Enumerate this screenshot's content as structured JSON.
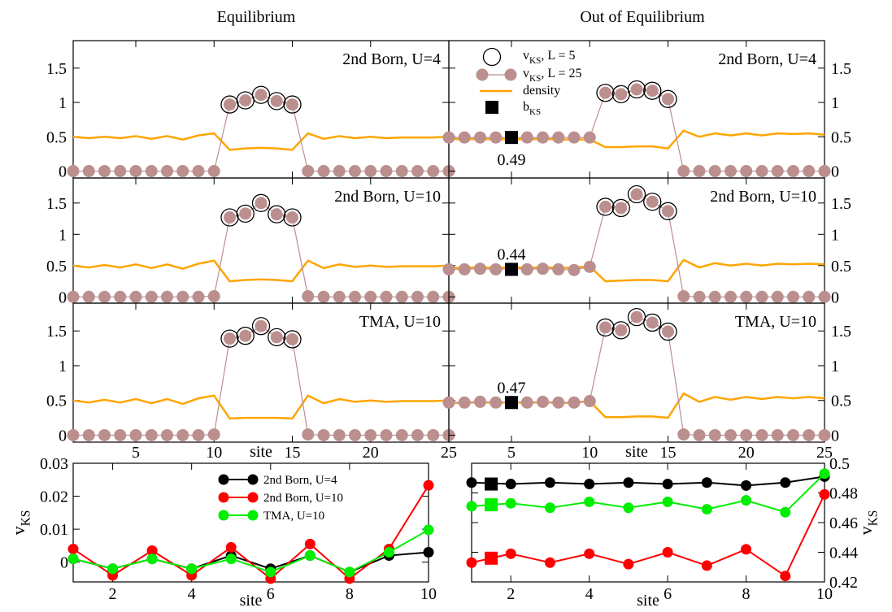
{
  "figure": {
    "column_titles": [
      "Equilibrium",
      "Out of Equilibrium"
    ],
    "colors": {
      "vks_line": "#bc8f8f",
      "vks_marker": "#bc8f8f",
      "density": "#ffa500",
      "bks": "#000000",
      "u4": "#000000",
      "u10": "#ff0000",
      "tma": "#00ee00"
    }
  },
  "chart_data": [
    {
      "type": "line",
      "id": "eq-2b-u4",
      "panel_label": "2nd Born, U=4",
      "xlim": [
        1,
        25
      ],
      "ylim": [
        -0.1,
        1.9
      ],
      "yticks": [
        0,
        0.5,
        1,
        1.5
      ],
      "series": [
        {
          "name": "v_KS, L = 5",
          "x": [
            11,
            12,
            13,
            14,
            15
          ],
          "y": [
            0.97,
            1.03,
            1.11,
            1.02,
            0.97
          ]
        },
        {
          "name": "v_KS, L = 25",
          "x": [
            1,
            2,
            3,
            4,
            5,
            6,
            7,
            8,
            9,
            10,
            11,
            12,
            13,
            14,
            15,
            16,
            17,
            18,
            19,
            20,
            21,
            22,
            23,
            24,
            25
          ],
          "y": [
            0,
            0,
            0,
            0,
            0,
            0,
            0,
            0,
            0,
            0,
            0.97,
            1.03,
            1.11,
            1.02,
            0.97,
            0,
            0,
            0,
            0,
            0,
            0,
            0,
            0,
            0,
            0
          ]
        },
        {
          "name": "density",
          "x": [
            1,
            2,
            3,
            4,
            5,
            6,
            7,
            8,
            9,
            10,
            11,
            12,
            13,
            14,
            15,
            16,
            17,
            18,
            19,
            20,
            21,
            22,
            23,
            24,
            25
          ],
          "y": [
            0.5,
            0.48,
            0.5,
            0.48,
            0.51,
            0.47,
            0.51,
            0.46,
            0.52,
            0.55,
            0.31,
            0.33,
            0.34,
            0.33,
            0.31,
            0.55,
            0.47,
            0.51,
            0.48,
            0.5,
            0.48,
            0.49,
            0.49,
            0.49,
            0.5
          ]
        }
      ]
    },
    {
      "type": "line",
      "id": "neq-2b-u4",
      "panel_label": "2nd Born, U=4",
      "xlim": [
        1,
        25
      ],
      "ylim": [
        -0.1,
        1.9
      ],
      "yticks": [
        0,
        0.5,
        1,
        1.5
      ],
      "bks": {
        "x": 5,
        "y": 0.49,
        "label": "0.49"
      },
      "series": [
        {
          "name": "v_KS, L = 5",
          "x": [
            11,
            12,
            13,
            14,
            15
          ],
          "y": [
            1.14,
            1.12,
            1.19,
            1.17,
            1.05
          ]
        },
        {
          "name": "v_KS, L = 25",
          "x": [
            1,
            2,
            3,
            4,
            5,
            6,
            7,
            8,
            9,
            10,
            11,
            12,
            13,
            14,
            15,
            16,
            17,
            18,
            19,
            20,
            21,
            22,
            23,
            24,
            25
          ],
          "y": [
            0.49,
            0.49,
            0.49,
            0.49,
            0.49,
            0.49,
            0.49,
            0.49,
            0.49,
            0.49,
            1.14,
            1.12,
            1.19,
            1.17,
            1.05,
            0,
            0,
            0,
            0,
            0,
            0,
            0,
            0,
            0,
            0
          ]
        },
        {
          "name": "density",
          "x": [
            1,
            2,
            3,
            4,
            5,
            6,
            7,
            8,
            9,
            10,
            11,
            12,
            13,
            14,
            15,
            16,
            17,
            18,
            19,
            20,
            21,
            22,
            23,
            24,
            25
          ],
          "y": [
            0.47,
            0.46,
            0.47,
            0.46,
            0.47,
            0.46,
            0.47,
            0.46,
            0.46,
            0.46,
            0.35,
            0.35,
            0.36,
            0.36,
            0.33,
            0.59,
            0.5,
            0.55,
            0.52,
            0.55,
            0.52,
            0.55,
            0.54,
            0.55,
            0.53
          ]
        }
      ]
    },
    {
      "type": "line",
      "id": "eq-2b-u10",
      "panel_label": "2nd Born, U=10",
      "xlim": [
        1,
        25
      ],
      "ylim": [
        -0.1,
        1.9
      ],
      "yticks": [
        0,
        0.5,
        1,
        1.5
      ],
      "series": [
        {
          "name": "v_KS, L = 5",
          "x": [
            11,
            12,
            13,
            14,
            15
          ],
          "y": [
            1.27,
            1.33,
            1.5,
            1.32,
            1.27
          ]
        },
        {
          "name": "v_KS, L = 25",
          "x": [
            1,
            2,
            3,
            4,
            5,
            6,
            7,
            8,
            9,
            10,
            11,
            12,
            13,
            14,
            15,
            16,
            17,
            18,
            19,
            20,
            21,
            22,
            23,
            24,
            25
          ],
          "y": [
            0,
            0,
            0,
            0,
            0,
            0,
            0,
            0,
            0,
            0.01,
            1.27,
            1.33,
            1.5,
            1.32,
            1.27,
            0.01,
            0,
            0,
            0,
            0,
            0,
            0,
            0,
            0,
            0
          ]
        },
        {
          "name": "density",
          "x": [
            1,
            2,
            3,
            4,
            5,
            6,
            7,
            8,
            9,
            10,
            11,
            12,
            13,
            14,
            15,
            16,
            17,
            18,
            19,
            20,
            21,
            22,
            23,
            24,
            25
          ],
          "y": [
            0.5,
            0.47,
            0.51,
            0.47,
            0.52,
            0.46,
            0.52,
            0.45,
            0.53,
            0.58,
            0.25,
            0.27,
            0.28,
            0.27,
            0.25,
            0.58,
            0.46,
            0.52,
            0.48,
            0.5,
            0.48,
            0.49,
            0.49,
            0.49,
            0.5
          ]
        }
      ]
    },
    {
      "type": "line",
      "id": "neq-2b-u10",
      "panel_label": "2nd Born, U=10",
      "xlim": [
        1,
        25
      ],
      "ylim": [
        -0.1,
        1.9
      ],
      "yticks": [
        0,
        0.5,
        1,
        1.5
      ],
      "bks": {
        "x": 5,
        "y": 0.44,
        "label": "0.44"
      },
      "series": [
        {
          "name": "v_KS, L = 5",
          "x": [
            11,
            12,
            13,
            14,
            15
          ],
          "y": [
            1.44,
            1.42,
            1.64,
            1.52,
            1.37
          ]
        },
        {
          "name": "v_KS, L = 25",
          "x": [
            1,
            2,
            3,
            4,
            5,
            6,
            7,
            8,
            9,
            10,
            11,
            12,
            13,
            14,
            15,
            16,
            17,
            18,
            19,
            20,
            21,
            22,
            23,
            24,
            25
          ],
          "y": [
            0.44,
            0.44,
            0.45,
            0.44,
            0.45,
            0.44,
            0.45,
            0.44,
            0.43,
            0.48,
            1.44,
            1.42,
            1.64,
            1.52,
            1.37,
            0.01,
            0,
            0,
            0,
            0,
            0,
            0,
            0,
            0,
            0
          ]
        },
        {
          "name": "density",
          "x": [
            1,
            2,
            3,
            4,
            5,
            6,
            7,
            8,
            9,
            10,
            11,
            12,
            13,
            14,
            15,
            16,
            17,
            18,
            19,
            20,
            21,
            22,
            23,
            24,
            25
          ],
          "y": [
            0.47,
            0.46,
            0.48,
            0.46,
            0.48,
            0.46,
            0.48,
            0.46,
            0.47,
            0.49,
            0.25,
            0.26,
            0.27,
            0.27,
            0.25,
            0.59,
            0.47,
            0.54,
            0.5,
            0.53,
            0.5,
            0.53,
            0.52,
            0.53,
            0.52
          ]
        }
      ]
    },
    {
      "type": "line",
      "id": "eq-tma-u10",
      "panel_label": "TMA, U=10",
      "xlim": [
        1,
        25
      ],
      "ylim": [
        -0.1,
        1.9
      ],
      "yticks": [
        0,
        0.5,
        1,
        1.5
      ],
      "series": [
        {
          "name": "v_KS, L = 5",
          "x": [
            11,
            12,
            13,
            14,
            15
          ],
          "y": [
            1.39,
            1.43,
            1.57,
            1.41,
            1.38
          ]
        },
        {
          "name": "v_KS, L = 25",
          "x": [
            1,
            2,
            3,
            4,
            5,
            6,
            7,
            8,
            9,
            10,
            11,
            12,
            13,
            14,
            15,
            16,
            17,
            18,
            19,
            20,
            21,
            22,
            23,
            24,
            25
          ],
          "y": [
            0,
            0,
            0,
            0,
            0,
            0,
            0,
            0,
            0,
            0.01,
            1.39,
            1.43,
            1.57,
            1.41,
            1.38,
            0.01,
            0,
            0,
            0,
            0,
            0,
            0,
            0,
            0,
            0
          ]
        },
        {
          "name": "density",
          "x": [
            1,
            2,
            3,
            4,
            5,
            6,
            7,
            8,
            9,
            10,
            11,
            12,
            13,
            14,
            15,
            16,
            17,
            18,
            19,
            20,
            21,
            22,
            23,
            24,
            25
          ],
          "y": [
            0.5,
            0.47,
            0.51,
            0.47,
            0.52,
            0.46,
            0.52,
            0.45,
            0.53,
            0.57,
            0.24,
            0.25,
            0.25,
            0.25,
            0.24,
            0.57,
            0.46,
            0.52,
            0.48,
            0.5,
            0.48,
            0.49,
            0.49,
            0.49,
            0.5
          ]
        }
      ]
    },
    {
      "type": "line",
      "id": "neq-tma-u10",
      "panel_label": "TMA, U=10",
      "xlim": [
        1,
        25
      ],
      "ylim": [
        -0.1,
        1.9
      ],
      "yticks": [
        0,
        0.5,
        1,
        1.5
      ],
      "bks": {
        "x": 5,
        "y": 0.47,
        "label": "0.47"
      },
      "series": [
        {
          "name": "v_KS, L = 5",
          "x": [
            11,
            12,
            13,
            14,
            15
          ],
          "y": [
            1.55,
            1.51,
            1.7,
            1.62,
            1.49
          ]
        },
        {
          "name": "v_KS, L = 25",
          "x": [
            1,
            2,
            3,
            4,
            5,
            6,
            7,
            8,
            9,
            10,
            11,
            12,
            13,
            14,
            15,
            16,
            17,
            18,
            19,
            20,
            21,
            22,
            23,
            24,
            25
          ],
          "y": [
            0.47,
            0.47,
            0.48,
            0.47,
            0.48,
            0.47,
            0.48,
            0.47,
            0.47,
            0.49,
            1.55,
            1.51,
            1.7,
            1.62,
            1.49,
            0.01,
            0,
            0,
            0,
            0,
            0,
            0,
            0,
            0,
            0
          ]
        },
        {
          "name": "density",
          "x": [
            1,
            2,
            3,
            4,
            5,
            6,
            7,
            8,
            9,
            10,
            11,
            12,
            13,
            14,
            15,
            16,
            17,
            18,
            19,
            20,
            21,
            22,
            23,
            24,
            25
          ],
          "y": [
            0.47,
            0.46,
            0.48,
            0.46,
            0.48,
            0.46,
            0.48,
            0.46,
            0.47,
            0.49,
            0.26,
            0.26,
            0.27,
            0.27,
            0.25,
            0.6,
            0.48,
            0.55,
            0.51,
            0.55,
            0.52,
            0.55,
            0.53,
            0.55,
            0.53
          ]
        }
      ]
    },
    {
      "type": "line",
      "id": "eq-small",
      "xlabel": "site",
      "ylabel": "v_KS",
      "xlim": [
        1,
        10
      ],
      "ylim": [
        -0.006,
        0.03
      ],
      "xticks": [
        2,
        4,
        6,
        8,
        10
      ],
      "yticks": [
        0,
        0.01,
        0.02,
        0.03
      ],
      "series": [
        {
          "name": "2nd Born, U=4",
          "x": [
            1,
            2,
            3,
            4,
            5,
            6,
            7,
            8,
            9,
            10
          ],
          "y": [
            0.001,
            -0.002,
            0.001,
            -0.002,
            0.002,
            -0.002,
            0.002,
            -0.003,
            0.002,
            0.003
          ]
        },
        {
          "name": "2nd Born, U=10",
          "x": [
            1,
            2,
            3,
            4,
            5,
            6,
            7,
            8,
            9,
            10
          ],
          "y": [
            0.004,
            -0.004,
            0.0035,
            -0.004,
            0.0045,
            -0.005,
            0.0055,
            -0.005,
            0.004,
            0.0233
          ]
        },
        {
          "name": "TMA, U=10",
          "x": [
            1,
            2,
            3,
            4,
            5,
            6,
            7,
            8,
            9,
            10
          ],
          "y": [
            0.001,
            -0.002,
            0.001,
            -0.002,
            0.001,
            -0.003,
            0.002,
            -0.003,
            0.003,
            0.0098
          ]
        }
      ]
    },
    {
      "type": "line",
      "id": "neq-small",
      "xlabel": "site",
      "ylabel": "v_KS",
      "xlim": [
        1,
        10
      ],
      "ylim": [
        0.42,
        0.5
      ],
      "xticks": [
        2,
        4,
        6,
        8,
        10
      ],
      "yticks": [
        0.42,
        0.44,
        0.46,
        0.48,
        0.5
      ],
      "series": [
        {
          "name": "2nd Born, U=4",
          "x": [
            1,
            2,
            3,
            4,
            5,
            6,
            7,
            8,
            9,
            10
          ],
          "y": [
            0.487,
            0.486,
            0.487,
            0.486,
            0.487,
            0.486,
            0.487,
            0.485,
            0.487,
            0.491
          ],
          "bks_y": 0.486
        },
        {
          "name": "2nd Born, U=10",
          "x": [
            1,
            2,
            3,
            4,
            5,
            6,
            7,
            8,
            9,
            10
          ],
          "y": [
            0.433,
            0.439,
            0.433,
            0.439,
            0.432,
            0.44,
            0.431,
            0.442,
            0.424,
            0.479
          ],
          "bks_y": 0.436
        },
        {
          "name": "TMA, U=10",
          "x": [
            1,
            2,
            3,
            4,
            5,
            6,
            7,
            8,
            9,
            10
          ],
          "y": [
            0.471,
            0.473,
            0.47,
            0.474,
            0.47,
            0.474,
            0.469,
            0.475,
            0.467,
            0.493
          ],
          "bks_y": 0.472
        }
      ]
    }
  ]
}
